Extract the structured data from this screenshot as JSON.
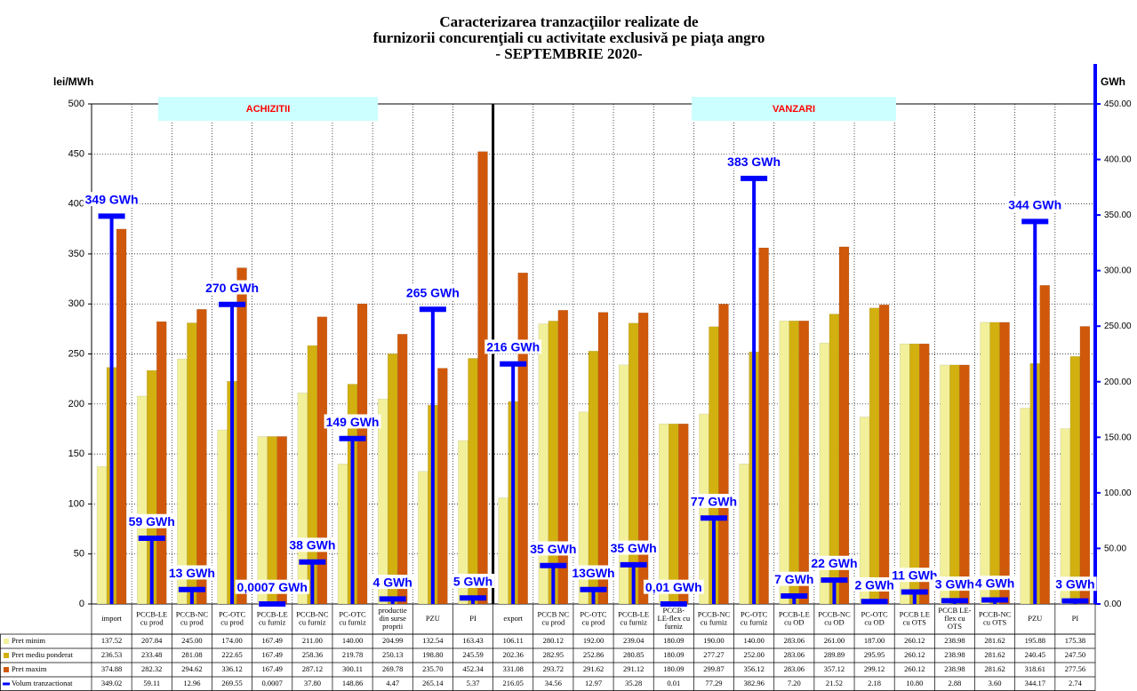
{
  "chart_data": {
    "type": "bar",
    "title": "Caracterizarea tranzacţiilor realizate de\nfurnizorii concurenţiali cu activitate exclusivă pe piaţa angro\n- SEPTEMBRIE 2020-",
    "y_label": "lei/MWh",
    "y2_label": "GWh",
    "annotations": [
      "ACHIZITII",
      "VANZARI"
    ],
    "categories": [
      "import",
      "PCCB-LE\ncu prod",
      "PCCB-NC\ncu prod",
      "PC-OTC\ncu prod",
      "PCCB-LE\ncu furniz",
      "PCCB-NC\ncu furniz",
      "PC-OTC\ncu furniz",
      "productie\ndin surse\nproprii",
      "PZU",
      "PI",
      "export",
      "PCCB NC\ncu prod",
      "PC-OTC\ncu prod",
      "PCCB-LE\ncu furniz",
      "PCCB-\nLE-flex cu\nfurniz",
      "PCCB-NC\ncu furniz",
      "PC-OTC\ncu furniz",
      "PCCB-LE\ncu OD",
      "PCCB-NC\ncu OD",
      "PC-OTC\ncu OD",
      "PCCB LE\ncu OTS",
      "PCCB LE-\nflex cu\nOTS",
      "PCCB-NC\ncu OTS",
      "PZU",
      "PI"
    ],
    "ylim": [
      0,
      500
    ],
    "yticks": [
      0,
      50,
      100,
      150,
      200,
      250,
      300,
      350,
      400,
      450,
      500
    ],
    "y2lim": [
      0,
      450
    ],
    "y2ticks": [
      {
        "value": 0,
        "label": "0.00"
      },
      {
        "value": 50,
        "label": "50.00"
      },
      {
        "value": 100,
        "label": "100.00"
      },
      {
        "value": 150,
        "label": "150.00"
      },
      {
        "value": 200,
        "label": "200.00"
      },
      {
        "value": 250,
        "label": "250.00"
      },
      {
        "value": 300,
        "label": "300.00"
      },
      {
        "value": 350,
        "label": "350.00"
      },
      {
        "value": 400,
        "label": "400.00"
      },
      {
        "value": 450,
        "label": "450.00"
      }
    ],
    "grid": true,
    "series": [
      {
        "name": "Pret minim",
        "color": "#f2f09a",
        "values": [
          137.52,
          207.84,
          245.0,
          174.0,
          167.49,
          211.0,
          140.0,
          204.99,
          132.54,
          163.43,
          106.11,
          280.12,
          192.0,
          239.04,
          180.09,
          190.0,
          140.0,
          283.06,
          261.0,
          187.0,
          260.12,
          238.98,
          281.62,
          195.88,
          175.38
        ],
        "table_labels": [
          "137.52",
          "207.84",
          "245.00",
          "174.00",
          "167.49",
          "211.00",
          "140.00",
          "204.99",
          "132.54",
          "163.43",
          "106.11",
          "280.12",
          "192.00",
          "239.04",
          "180.09",
          "190.00",
          "140.00",
          "283.06",
          "261.00",
          "187.00",
          "260.12",
          "238.98",
          "281.62",
          "195.88",
          "175.38"
        ]
      },
      {
        "name": "Pret mediu ponderat",
        "color": "#d2b010",
        "values": [
          236.53,
          233.48,
          281.08,
          222.65,
          167.49,
          258.36,
          219.78,
          250.13,
          198.8,
          245.59,
          202.36,
          282.95,
          252.86,
          280.85,
          180.09,
          277.27,
          252.0,
          283.06,
          289.89,
          295.95,
          260.12,
          238.98,
          281.62,
          240.45,
          247.5
        ],
        "table_labels": [
          "236.53",
          "233.48",
          "281.08",
          "222.65",
          "167.49",
          "258.36",
          "219.78",
          "250.13",
          "198.80",
          "245.59",
          "202.36",
          "282.95",
          "252.86",
          "280.85",
          "180.09",
          "277.27",
          "252.00",
          "283.06",
          "289.89",
          "295.95",
          "260.12",
          "238.98",
          "281.62",
          "240.45",
          "247.50"
        ]
      },
      {
        "name": "Pret maxim",
        "color": "#d0580a",
        "values": [
          374.88,
          282.32,
          294.62,
          336.12,
          167.49,
          287.12,
          300.11,
          269.78,
          235.7,
          452.34,
          331.08,
          293.72,
          291.62,
          291.12,
          180.09,
          299.87,
          356.12,
          283.06,
          357.12,
          299.12,
          260.12,
          238.98,
          281.62,
          318.61,
          277.56
        ],
        "table_labels": [
          "374.88",
          "282.32",
          "294.62",
          "336.12",
          "167.49",
          "287.12",
          "300.11",
          "269.78",
          "235.70",
          "452.34",
          "331.08",
          "293.72",
          "291.62",
          "291.12",
          "180.09",
          "299.87",
          "356.12",
          "283.06",
          "357.12",
          "299.12",
          "260.12",
          "238.98",
          "281.62",
          "318.61",
          "277.56"
        ]
      },
      {
        "name": "Volum tranzactionat",
        "color": "#0000ff",
        "axis": "y2",
        "values": [
          349.02,
          59.11,
          12.96,
          269.55,
          0.0007,
          37.8,
          148.86,
          4.47,
          265.14,
          5.37,
          216.05,
          34.56,
          12.97,
          35.28,
          0.01,
          77.29,
          382.96,
          7.2,
          21.52,
          2.18,
          10.8,
          2.88,
          3.6,
          344.17,
          2.74
        ],
        "table_labels": [
          "349.02",
          "59.11",
          "12.96",
          "269.55",
          "0.0007",
          "37.80",
          "148.86",
          "4.47",
          "265.14",
          "5.37",
          "216.05",
          "34.56",
          "12.97",
          "35.28",
          "0.01",
          "77.29",
          "382.96",
          "7.20",
          "21.52",
          "2.18",
          "10.80",
          "2.88",
          "3.60",
          "344.17",
          "2.74"
        ],
        "value_labels": [
          "349 GWh",
          "59 GWh",
          "13 GWh",
          "270 GWh",
          "0,0007 GWh",
          "38 GWh",
          "149 GWh",
          "4 GWh",
          "265 GWh",
          "5 GWh",
          "216 GWh",
          "35 GWh",
          "13GWh",
          "35 GWh",
          "0,01 GWh",
          "77 GWh",
          "383 GWh",
          "7 GWh",
          "22 GWh",
          "2 GWh",
          "11 GWh",
          "3 GWh",
          "4 GWh",
          "344 GWh",
          "3 GWh"
        ]
      }
    ]
  }
}
